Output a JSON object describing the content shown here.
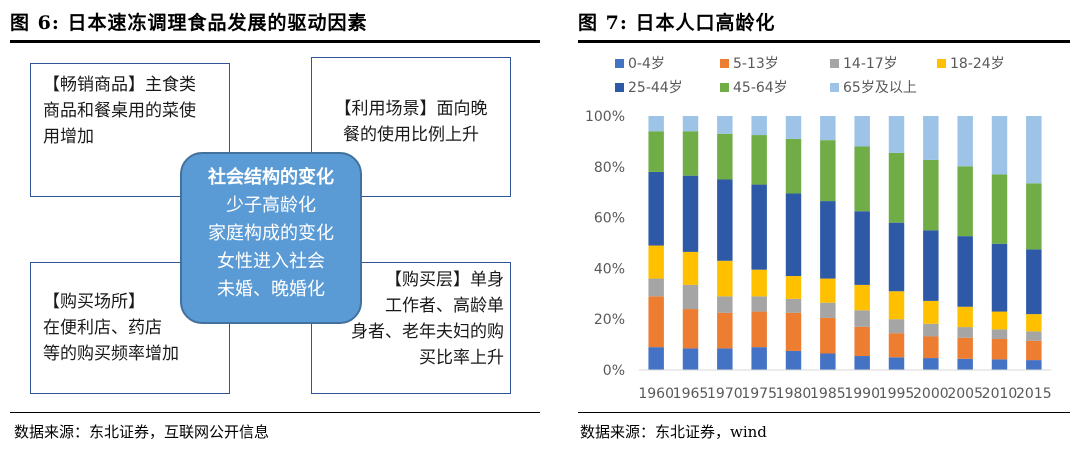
{
  "left_panel": {
    "title": "图 6: 日本速冻调理食品发展的驱动因素",
    "source": "数据来源：东北证券，互联网公开信息",
    "box_top_left": [
      "【畅销商品】主食类",
      "商品和餐桌用的菜使",
      "用增加"
    ],
    "box_top_right": [
      "【利用场景】面向晚",
      "餐的使用比例上升"
    ],
    "box_bottom_left": [
      "【购买场所】",
      "在便利店、药店",
      "等的购买频率增加"
    ],
    "box_bottom_right": [
      "【购买层】单身",
      "工作者、高龄单",
      "身者、老年夫妇的购",
      "买比率上升"
    ],
    "center": [
      "社会结构的变化",
      "少子高龄化",
      "家庭构成的变化",
      "女性进入社会",
      "未婚、晚婚化"
    ]
  },
  "right_panel": {
    "title": "图 7: 日本人口高龄化",
    "source": "数据来源：东北证券，wind"
  },
  "chart_data": {
    "type": "bar",
    "stacked": true,
    "categories": [
      "1960",
      "1965",
      "1970",
      "1975",
      "1980",
      "1985",
      "1990",
      "1995",
      "2000",
      "2005",
      "2010",
      "2015"
    ],
    "y_ticks": [
      "0%",
      "20%",
      "40%",
      "60%",
      "80%",
      "100%"
    ],
    "ylim": [
      0,
      100
    ],
    "legend_position": "top",
    "series": [
      {
        "name": "0-4岁",
        "color": "#4472c4",
        "values": [
          9,
          8.5,
          8.5,
          9,
          7.5,
          6.5,
          5.5,
          5,
          4.7,
          4.4,
          4.2,
          3.9
        ]
      },
      {
        "name": "5-13岁",
        "color": "#ed7d31",
        "values": [
          20,
          15.5,
          14,
          14,
          15,
          14,
          11.5,
          9.5,
          8.5,
          8.3,
          8,
          7.6
        ]
      },
      {
        "name": "14-17岁",
        "color": "#a5a5a5",
        "values": [
          7,
          9.5,
          6.5,
          6,
          5.5,
          6,
          6.5,
          5.5,
          5,
          4.2,
          3.8,
          3.7
        ]
      },
      {
        "name": "18-24岁",
        "color": "#ffc000",
        "values": [
          13,
          13,
          14,
          10.5,
          9,
          9.5,
          10,
          11,
          9,
          8,
          7,
          6.8
        ]
      },
      {
        "name": "25-44岁",
        "color": "#2e59a7",
        "values": [
          29,
          30,
          32,
          33.5,
          32.5,
          30.5,
          29,
          27,
          27.8,
          27.8,
          26.7,
          25.5
        ]
      },
      {
        "name": "45-64岁",
        "color": "#70ad47",
        "values": [
          16,
          17.5,
          18,
          19.5,
          21.5,
          24,
          25.5,
          27.5,
          27.7,
          27.5,
          27.3,
          26
        ]
      },
      {
        "name": "65岁及以上",
        "color": "#9dc3e6",
        "values": [
          6,
          6,
          7,
          7.5,
          9,
          9.5,
          12,
          14.5,
          17.3,
          19.8,
          23,
          26.5
        ]
      }
    ]
  }
}
